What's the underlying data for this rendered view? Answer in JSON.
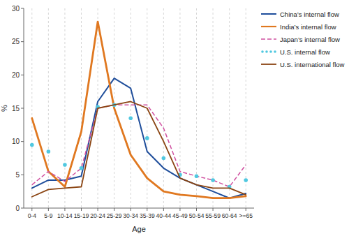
{
  "chart_data": {
    "type": "line",
    "categories": [
      "0-4",
      "5-9",
      "10-14",
      "15-19",
      "20-24",
      "25-29",
      "30-34",
      "35-39",
      "40-44",
      "45-49",
      "50-54",
      "55-59",
      "60-64",
      ">=65"
    ],
    "series": [
      {
        "name": "China’s internal flow",
        "color": "#1f4e9b",
        "line_style": "solid",
        "values": [
          3.0,
          4.2,
          4.2,
          4.8,
          16.0,
          19.5,
          18.0,
          8.5,
          6.0,
          4.5,
          3.5,
          2.5,
          1.5,
          2.2
        ]
      },
      {
        "name": "India’s internal flow",
        "color": "#e07820",
        "line_style": "solid",
        "values": [
          13.5,
          5.5,
          3.2,
          11.5,
          28.0,
          15.0,
          8.0,
          4.5,
          2.5,
          2.0,
          1.8,
          1.5,
          1.5,
          1.8
        ]
      },
      {
        "name": "Japan’s internal flow",
        "color": "#d050a0",
        "line_style": "dashed",
        "values": [
          3.5,
          5.5,
          4.0,
          6.0,
          15.0,
          15.5,
          15.5,
          15.5,
          12.0,
          5.5,
          4.8,
          4.2,
          3.2,
          6.5
        ]
      },
      {
        "name": "U.S. internal flow",
        "color": "#50c8e0",
        "line_style": "none",
        "marker": "circle",
        "values": [
          9.5,
          8.5,
          6.5,
          6.0,
          15.2,
          15.5,
          13.5,
          10.5,
          7.5,
          5.0,
          4.8,
          4.2,
          3.2,
          4.2
        ]
      },
      {
        "name": "U.S. international flow",
        "color": "#8b4513",
        "line_style": "solid",
        "values": [
          1.7,
          2.8,
          3.0,
          3.2,
          15.0,
          15.5,
          16.0,
          15.0,
          10.0,
          4.5,
          3.5,
          3.0,
          3.0,
          2.0
        ]
      }
    ],
    "xlabel": "Age",
    "ylabel": "%",
    "ylim": [
      0,
      30
    ],
    "yticks": [
      0,
      5,
      10,
      15,
      20,
      25,
      30
    ],
    "grid": "x",
    "legend": "right"
  }
}
